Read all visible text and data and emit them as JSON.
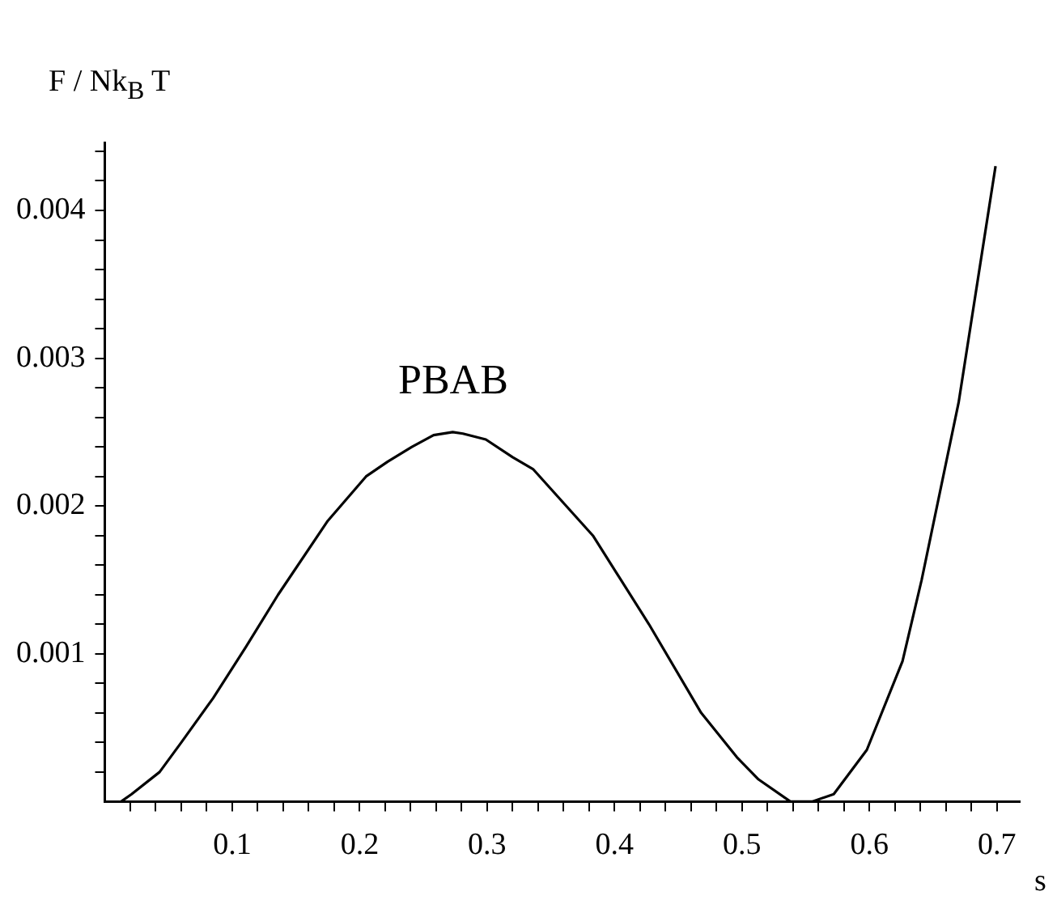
{
  "chart_data": {
    "type": "line",
    "xlabel": "s",
    "ylabel": "F / Nk$_{B}$ T",
    "annotations": [
      "PBAB"
    ],
    "x": [
      0.0128,
      0.021,
      0.043,
      0.06,
      0.085,
      0.111,
      0.136,
      0.175,
      0.205,
      0.222,
      0.241,
      0.258,
      0.273,
      0.281,
      0.299,
      0.32,
      0.336,
      0.383,
      0.427,
      0.468,
      0.496,
      0.513,
      0.538,
      0.555,
      0.572,
      0.598,
      0.626,
      0.641,
      0.67,
      0.699
    ],
    "series": [
      {
        "color": "#000000",
        "values": [
          0,
          5e-05,
          0.0002,
          0.0004,
          0.0007,
          0.00105,
          0.0014,
          0.0019,
          0.0022,
          0.0023,
          0.0024,
          0.00248,
          0.0025,
          0.00249,
          0.00245,
          0.00233,
          0.00225,
          0.0018,
          0.0012,
          0.0006,
          0.0003,
          0.00015,
          0,
          0,
          5e-05,
          0.00035,
          0.00095,
          0.0015,
          0.0027,
          0.0043
        ]
      }
    ],
    "xlim": [
      0,
      0.718
    ],
    "ylim": [
      0,
      0.00446
    ],
    "xticks": [
      {
        "value": 0.02,
        "label": null
      },
      {
        "value": 0.04,
        "label": null
      },
      {
        "value": 0.06,
        "label": null
      },
      {
        "value": 0.08,
        "label": null
      },
      0.1,
      {
        "value": 0.12,
        "label": null
      },
      {
        "value": 0.14,
        "label": null
      },
      {
        "value": 0.16,
        "label": null
      },
      {
        "value": 0.18,
        "label": null
      },
      0.2,
      {
        "value": 0.22,
        "label": null
      },
      {
        "value": 0.24,
        "label": null
      },
      {
        "value": 0.26,
        "label": null
      },
      {
        "value": 0.28,
        "label": null
      },
      0.3,
      {
        "value": 0.32,
        "label": null
      },
      {
        "value": 0.34,
        "label": null
      },
      {
        "value": 0.36,
        "label": null
      },
      {
        "value": 0.38,
        "label": null
      },
      0.4,
      {
        "value": 0.42,
        "label": null
      },
      {
        "value": 0.44,
        "label": null
      },
      {
        "value": 0.46,
        "label": null
      },
      {
        "value": 0.48,
        "label": null
      },
      0.5,
      {
        "value": 0.52,
        "label": null
      },
      {
        "value": 0.54,
        "label": null
      },
      {
        "value": 0.56,
        "label": null
      },
      {
        "value": 0.58,
        "label": null
      },
      0.6,
      {
        "value": 0.62,
        "label": null
      },
      {
        "value": 0.64,
        "label": null
      },
      {
        "value": 0.66,
        "label": null
      },
      {
        "value": 0.68,
        "label": null
      },
      0.7
    ],
    "yticks": [
      {
        "value": 0.0002,
        "label": null
      },
      {
        "value": 0.0004,
        "label": null
      },
      {
        "value": 0.0006,
        "label": null
      },
      {
        "value": 0.0008,
        "label": null
      },
      0.001,
      {
        "value": 0.0012,
        "label": null
      },
      {
        "value": 0.0014,
        "label": null
      },
      {
        "value": 0.0016,
        "label": null
      },
      {
        "value": 0.0018,
        "label": null
      },
      0.002,
      {
        "value": 0.0022,
        "label": null
      },
      {
        "value": 0.0024,
        "label": null
      },
      {
        "value": 0.0026,
        "label": null
      },
      {
        "value": 0.0028,
        "label": null
      },
      0.003,
      {
        "value": 0.0032,
        "label": null
      },
      {
        "value": 0.0034,
        "label": null
      },
      {
        "value": 0.0036,
        "label": null
      },
      {
        "value": 0.0038,
        "label": null
      },
      0.004,
      {
        "value": 0.0042,
        "label": null
      },
      {
        "value": 0.0044,
        "label": null
      }
    ],
    "grid": false,
    "legend": false,
    "marker": "none",
    "line_style": "solid"
  }
}
